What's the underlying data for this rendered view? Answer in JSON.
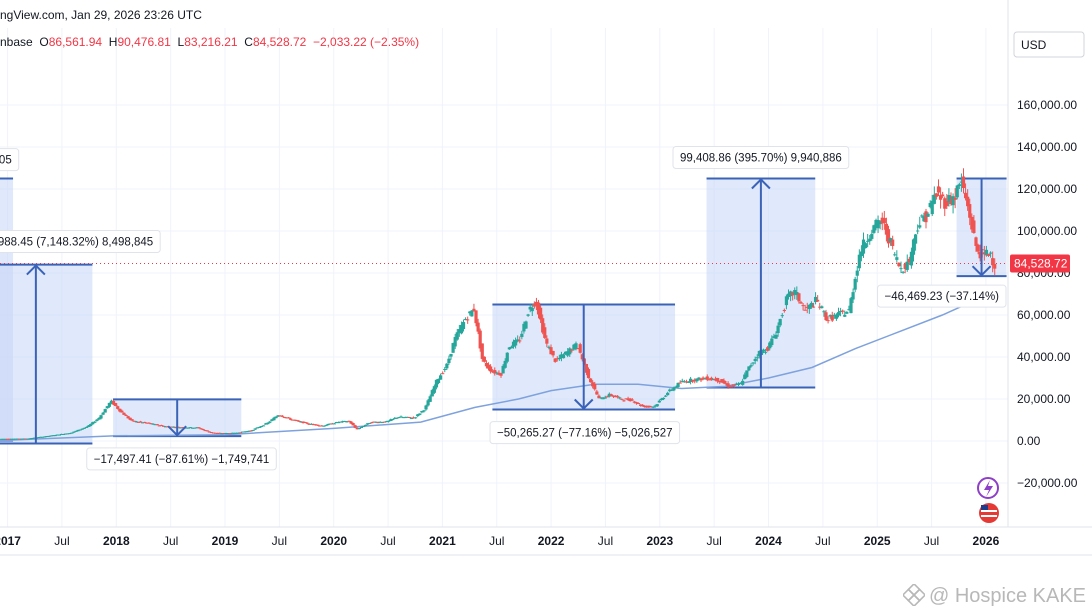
{
  "header": {
    "line1": "ngView.com, Jan 29, 2026 23:26 UTC",
    "exchange": "nbase",
    "o_label": "O",
    "o_val": "86,561.94",
    "h_label": "H",
    "h_val": "90,476.81",
    "l_label": "L",
    "l_val": "83,216.21",
    "c_label": "C",
    "c_val": "84,528.72",
    "change": "−2,033.22 (−2.35%)"
  },
  "currency_button": "USD",
  "watermark": "@ Hospice KAKE",
  "price_label": "84,528.72",
  "chart_data": {
    "type": "candlestick",
    "symbol_source": "Coinbase (partial)",
    "ylim": [
      -28000,
      176000
    ],
    "y_ticks": [
      -20000,
      0,
      20000,
      40000,
      60000,
      80000,
      100000,
      120000,
      140000,
      160000
    ],
    "y_tick_labels": [
      "−20,000.00",
      "0.00",
      "20,000.00",
      "40,000.00",
      "60,000.00",
      "80,000.00",
      "100,000.00",
      "120,000.00",
      "140,000.00",
      "160,000.00"
    ],
    "x_range": [
      2016.94,
      2026.2
    ],
    "x_ticks": [
      {
        "t": 2017.0,
        "label": "2017",
        "bold": true
      },
      {
        "t": 2017.5,
        "label": "Jul",
        "bold": false
      },
      {
        "t": 2018.0,
        "label": "2018",
        "bold": true
      },
      {
        "t": 2018.5,
        "label": "Jul",
        "bold": false
      },
      {
        "t": 2019.0,
        "label": "2019",
        "bold": true
      },
      {
        "t": 2019.5,
        "label": "Jul",
        "bold": false
      },
      {
        "t": 2020.0,
        "label": "2020",
        "bold": true
      },
      {
        "t": 2020.5,
        "label": "Jul",
        "bold": false
      },
      {
        "t": 2021.0,
        "label": "2021",
        "bold": true
      },
      {
        "t": 2021.5,
        "label": "Jul",
        "bold": false
      },
      {
        "t": 2022.0,
        "label": "2022",
        "bold": true
      },
      {
        "t": 2022.5,
        "label": "Jul",
        "bold": false
      },
      {
        "t": 2023.0,
        "label": "2023",
        "bold": true
      },
      {
        "t": 2023.5,
        "label": "Jul",
        "bold": false
      },
      {
        "t": 2024.0,
        "label": "2024",
        "bold": true
      },
      {
        "t": 2024.5,
        "label": "Jul",
        "bold": false
      },
      {
        "t": 2025.0,
        "label": "2025",
        "bold": true
      },
      {
        "t": 2025.5,
        "label": "Jul",
        "bold": false
      },
      {
        "t": 2026.0,
        "label": "2026",
        "bold": true
      }
    ],
    "last_price": 84528.72,
    "price_series": [
      [
        2016.9,
        1000
      ],
      [
        2017.2,
        1200
      ],
      [
        2017.4,
        2500
      ],
      [
        2017.6,
        4000
      ],
      [
        2017.75,
        7000
      ],
      [
        2017.85,
        11000
      ],
      [
        2017.96,
        19000
      ],
      [
        2018.05,
        14000
      ],
      [
        2018.15,
        9500
      ],
      [
        2018.3,
        8500
      ],
      [
        2018.45,
        7000
      ],
      [
        2018.6,
        6500
      ],
      [
        2018.75,
        6400
      ],
      [
        2018.88,
        4000
      ],
      [
        2018.96,
        3700
      ],
      [
        2019.1,
        3800
      ],
      [
        2019.25,
        5000
      ],
      [
        2019.4,
        8500
      ],
      [
        2019.5,
        12500
      ],
      [
        2019.6,
        10500
      ],
      [
        2019.75,
        8500
      ],
      [
        2019.9,
        7200
      ],
      [
        2020.05,
        9000
      ],
      [
        2020.15,
        9500
      ],
      [
        2020.22,
        5500
      ],
      [
        2020.35,
        9000
      ],
      [
        2020.5,
        9200
      ],
      [
        2020.6,
        11500
      ],
      [
        2020.75,
        11000
      ],
      [
        2020.85,
        15500
      ],
      [
        2020.96,
        29000
      ],
      [
        2021.05,
        36000
      ],
      [
        2021.12,
        48000
      ],
      [
        2021.22,
        58000
      ],
      [
        2021.3,
        63000
      ],
      [
        2021.38,
        38000
      ],
      [
        2021.47,
        33000
      ],
      [
        2021.55,
        32000
      ],
      [
        2021.62,
        45000
      ],
      [
        2021.72,
        48000
      ],
      [
        2021.8,
        62000
      ],
      [
        2021.87,
        67000
      ],
      [
        2021.96,
        47000
      ],
      [
        2022.05,
        38000
      ],
      [
        2022.15,
        42000
      ],
      [
        2022.25,
        46000
      ],
      [
        2022.35,
        31000
      ],
      [
        2022.45,
        20000
      ],
      [
        2022.55,
        22000
      ],
      [
        2022.65,
        20000
      ],
      [
        2022.75,
        19500
      ],
      [
        2022.85,
        16500
      ],
      [
        2022.96,
        16500
      ],
      [
        2023.08,
        23000
      ],
      [
        2023.2,
        28000
      ],
      [
        2023.3,
        29000
      ],
      [
        2023.45,
        30000
      ],
      [
        2023.55,
        29000
      ],
      [
        2023.65,
        26000
      ],
      [
        2023.75,
        27000
      ],
      [
        2023.83,
        35000
      ],
      [
        2023.92,
        42000
      ],
      [
        2024.0,
        44000
      ],
      [
        2024.08,
        52000
      ],
      [
        2024.18,
        68000
      ],
      [
        2024.25,
        71000
      ],
      [
        2024.35,
        62000
      ],
      [
        2024.45,
        67000
      ],
      [
        2024.55,
        58000
      ],
      [
        2024.65,
        60000
      ],
      [
        2024.75,
        62000
      ],
      [
        2024.85,
        90000
      ],
      [
        2024.95,
        100000
      ],
      [
        2025.05,
        105000
      ],
      [
        2025.12,
        96000
      ],
      [
        2025.22,
        82000
      ],
      [
        2025.3,
        85000
      ],
      [
        2025.38,
        103000
      ],
      [
        2025.47,
        108000
      ],
      [
        2025.55,
        118000
      ],
      [
        2025.63,
        114000
      ],
      [
        2025.72,
        116000
      ],
      [
        2025.78,
        124000
      ],
      [
        2025.85,
        110000
      ],
      [
        2025.92,
        92000
      ],
      [
        2025.98,
        88000
      ],
      [
        2026.05,
        90000
      ],
      [
        2026.08,
        84528
      ]
    ],
    "ma_series": [
      [
        2016.9,
        200
      ],
      [
        2018.0,
        2500
      ],
      [
        2019.0,
        3000
      ],
      [
        2020.0,
        6000
      ],
      [
        2020.8,
        9000
      ],
      [
        2021.3,
        16000
      ],
      [
        2021.7,
        20000
      ],
      [
        2022.0,
        24000
      ],
      [
        2022.4,
        27000
      ],
      [
        2022.8,
        27000
      ],
      [
        2023.2,
        25000
      ],
      [
        2023.6,
        26000
      ],
      [
        2024.0,
        30000
      ],
      [
        2024.4,
        35000
      ],
      [
        2024.8,
        44000
      ],
      [
        2025.2,
        52000
      ],
      [
        2025.6,
        60000
      ],
      [
        2025.9,
        67000
      ],
      [
        2026.08,
        69000
      ]
    ],
    "measurements": [
      {
        "t1": 2016.9,
        "t2": 2017.05,
        "y_top": 125000,
        "y_bottom": 0,
        "arrow": "up",
        "label": "05",
        "label_t": 2016.92,
        "label_y": 134000,
        "label_anchor": "start"
      },
      {
        "t1": 2016.9,
        "t2": 2017.78,
        "y_top": 84000,
        "y_bottom": -1200,
        "arrow": "up",
        "label": "988.45 (7,148.32%) 8,498,845",
        "label_t": 2016.91,
        "label_y": 95000,
        "label_anchor": "start"
      },
      {
        "t1": 2017.97,
        "t2": 2019.15,
        "y_top": 19800,
        "y_bottom": 2300,
        "arrow": "down",
        "label": "−17,497.41 (−87.61%) −1,749,741",
        "label_t": 2018.6,
        "label_y": -8500,
        "label_anchor": "middle"
      },
      {
        "t1": 2021.46,
        "t2": 2023.14,
        "y_top": 65000,
        "y_bottom": 15000,
        "arrow": "down",
        "label": "−50,265.27 (−77.16%) −5,026,527",
        "label_t": 2022.31,
        "label_y": 4000,
        "label_anchor": "middle"
      },
      {
        "t1": 2023.43,
        "t2": 2024.43,
        "y_top": 125000,
        "y_bottom": 25500,
        "arrow": "up",
        "label": "99,408.86 (395.70%) 9,940,886",
        "label_t": 2023.93,
        "label_y": 135000,
        "label_anchor": "middle"
      },
      {
        "t1": 2025.73,
        "t2": 2026.19,
        "y_top": 125000,
        "y_bottom": 78500,
        "arrow": "down",
        "label": "−46,469.23 (−37.14%)",
        "label_t": 2025.96,
        "label_y": 69000,
        "label_anchor": "middle"
      }
    ],
    "colors": {
      "up": "#26a69a",
      "down": "#ef5350",
      "ma": "#7ea2dd",
      "measure_fill": "#c6d5f8",
      "measure_line": "#3a63b8",
      "price_tag": "#f23645"
    }
  }
}
